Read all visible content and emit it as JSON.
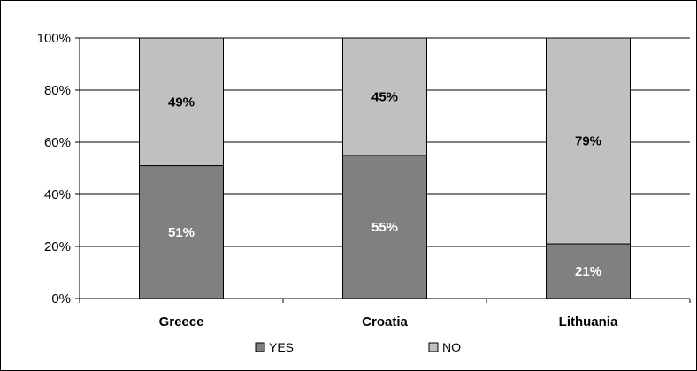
{
  "chart_data": {
    "type": "bar",
    "stacked": true,
    "categories": [
      "Greece",
      "Croatia",
      "Lithuania"
    ],
    "series": [
      {
        "name": "YES",
        "values": [
          51,
          55,
          21
        ],
        "labels": [
          "51%",
          "55%",
          "21%"
        ],
        "color": "#808080",
        "label_color": "#ffffff"
      },
      {
        "name": "NO",
        "values": [
          49,
          45,
          79
        ],
        "labels": [
          "49%",
          "45%",
          "79%"
        ],
        "color": "#c0c0c0",
        "label_color": "#000000"
      }
    ],
    "ylim": [
      0,
      100
    ],
    "yticks": [
      0,
      20,
      40,
      60,
      80,
      100
    ],
    "ytick_labels": [
      "0%",
      "20%",
      "40%",
      "60%",
      "80%",
      "100%"
    ],
    "grid": true,
    "legend": "bottom-center",
    "title": "",
    "xlabel": "",
    "ylabel": ""
  }
}
